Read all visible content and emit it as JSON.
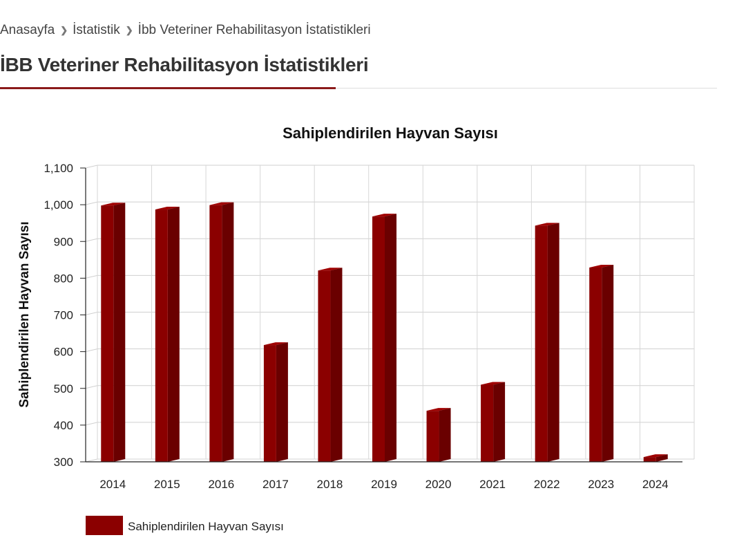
{
  "breadcrumb": {
    "home": "Anasayfa",
    "section": "İstatistik",
    "current": "İbb Veteriner Rehabilitasyon İstatistikleri",
    "separator_icon": "chevron-right-icon"
  },
  "page": {
    "title": "İBB Veteriner Rehabilitasyon İstatistikleri"
  },
  "colors": {
    "accent": "#8b1a1a",
    "bar_front": "#8b0000",
    "bar_side": "#6a0000",
    "bar_top": "#a00000"
  },
  "chart_data": {
    "type": "bar",
    "title": "Sahiplendirilen Hayvan Sayısı",
    "xlabel": "",
    "ylabel": "Sahiplendirilen Hayvan Sayısı",
    "categories": [
      "2014",
      "2015",
      "2016",
      "2017",
      "2018",
      "2019",
      "2020",
      "2021",
      "2022",
      "2023",
      "2024"
    ],
    "series": [
      {
        "name": "Sahiplendirilen Hayvan Sayısı",
        "values": [
          998,
          987,
          999,
          618,
          821,
          968,
          439,
          510,
          943,
          829,
          313
        ]
      }
    ],
    "ylim": [
      300,
      1100
    ],
    "yticks": [
      "300",
      "400",
      "500",
      "600",
      "700",
      "800",
      "900",
      "1,000",
      "1,100"
    ],
    "grid": true,
    "legend": "bottom-left"
  }
}
